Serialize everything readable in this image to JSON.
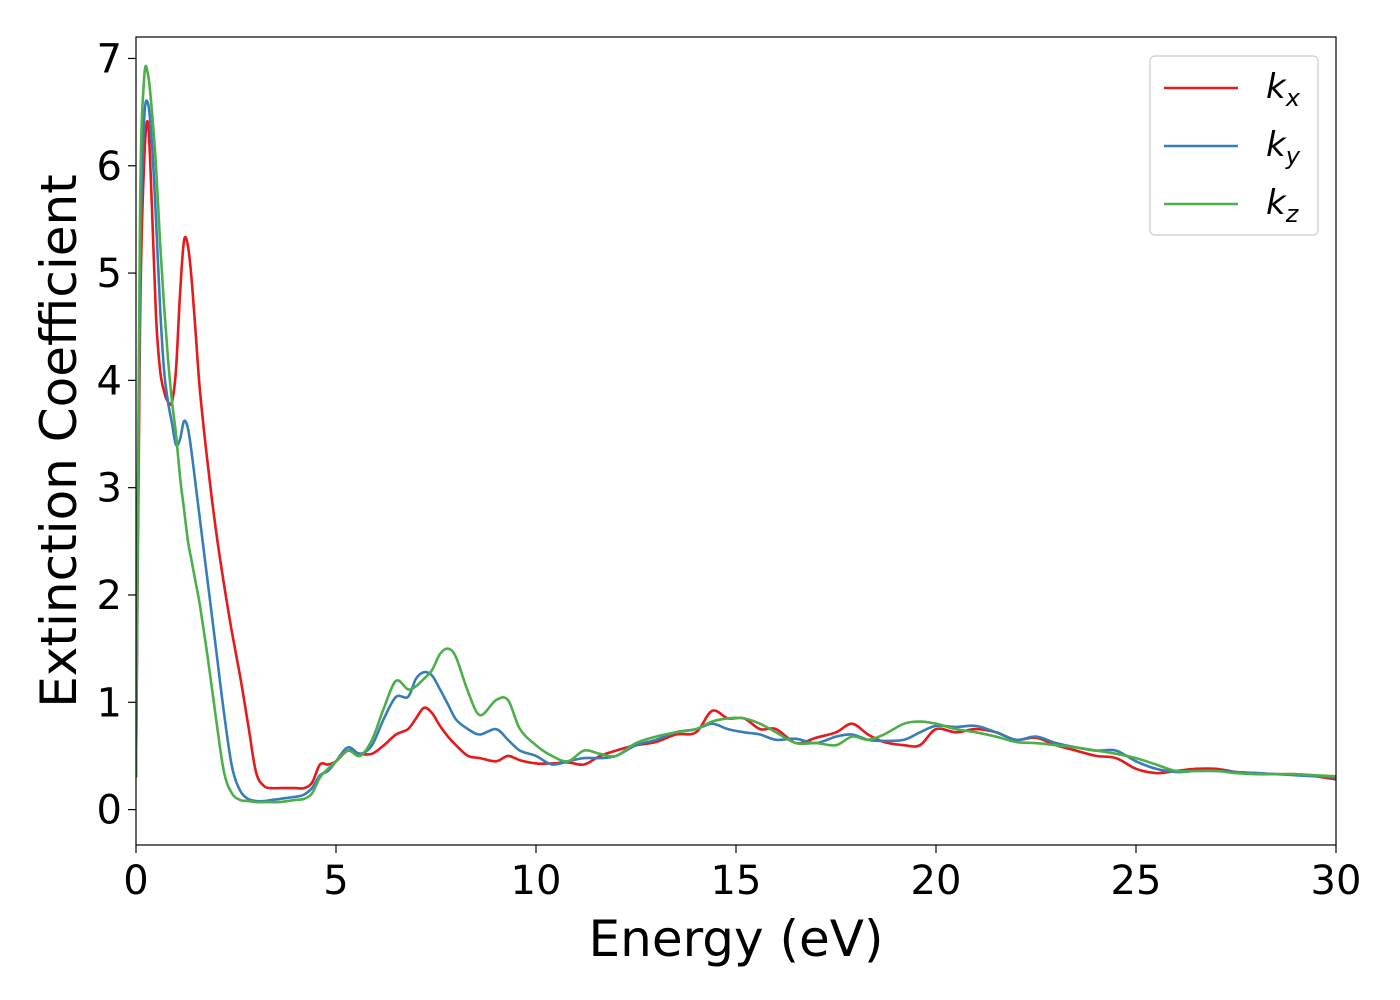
{
  "chart_data": {
    "type": "line",
    "title": "",
    "xlabel": "Energy (eV)",
    "ylabel": "Extinction Coefficient",
    "xlim": [
      0,
      30
    ],
    "ylim": [
      -0.33,
      7.2
    ],
    "xticks": [
      0,
      5,
      10,
      15,
      20,
      25,
      30
    ],
    "yticks": [
      0,
      1,
      2,
      3,
      4,
      5,
      6,
      7
    ],
    "grid": false,
    "legend_position": "top-right",
    "series": [
      {
        "name": "k",
        "subscript": "x",
        "color": "#e41a1c",
        "x": [
          0,
          0.1,
          0.2,
          0.3,
          0.4,
          0.5,
          0.6,
          0.7,
          0.8,
          0.9,
          1.0,
          1.1,
          1.2,
          1.3,
          1.4,
          1.5,
          1.6,
          1.8,
          2.0,
          2.2,
          2.4,
          2.6,
          2.8,
          3.0,
          3.2,
          3.4,
          3.6,
          3.8,
          4.0,
          4.2,
          4.4,
          4.6,
          4.8,
          5.0,
          5.3,
          5.6,
          5.9,
          6.2,
          6.5,
          6.8,
          7.0,
          7.2,
          7.4,
          7.6,
          7.8,
          8.0,
          8.3,
          8.6,
          9.0,
          9.3,
          9.6,
          10.0,
          10.4,
          10.8,
          11.2,
          11.6,
          12.0,
          12.5,
          13.0,
          13.5,
          14.0,
          14.4,
          14.8,
          15.2,
          15.6,
          16.0,
          16.5,
          17.0,
          17.5,
          17.9,
          18.3,
          18.7,
          19.2,
          19.6,
          20.0,
          20.5,
          21.0,
          21.5,
          22.0,
          22.5,
          23.0,
          23.5,
          24.0,
          24.5,
          25.0,
          25.5,
          26.0,
          26.5,
          27.0,
          27.5,
          28.0,
          28.5,
          29.0,
          29.5,
          30.0
        ],
        "y": [
          0.3,
          4.5,
          6.0,
          6.4,
          5.6,
          4.6,
          4.1,
          3.9,
          3.8,
          3.8,
          4.1,
          4.8,
          5.3,
          5.25,
          4.9,
          4.4,
          3.9,
          3.2,
          2.6,
          2.1,
          1.65,
          1.25,
          0.8,
          0.35,
          0.22,
          0.2,
          0.2,
          0.2,
          0.2,
          0.2,
          0.25,
          0.42,
          0.42,
          0.45,
          0.55,
          0.52,
          0.52,
          0.6,
          0.7,
          0.75,
          0.85,
          0.95,
          0.9,
          0.78,
          0.68,
          0.6,
          0.5,
          0.48,
          0.45,
          0.5,
          0.46,
          0.43,
          0.43,
          0.44,
          0.42,
          0.5,
          0.55,
          0.6,
          0.63,
          0.7,
          0.72,
          0.92,
          0.85,
          0.85,
          0.75,
          0.75,
          0.62,
          0.67,
          0.72,
          0.8,
          0.7,
          0.63,
          0.6,
          0.6,
          0.75,
          0.72,
          0.75,
          0.72,
          0.65,
          0.67,
          0.6,
          0.55,
          0.5,
          0.48,
          0.38,
          0.34,
          0.36,
          0.38,
          0.38,
          0.35,
          0.34,
          0.33,
          0.33,
          0.31,
          0.28
        ]
      },
      {
        "name": "k",
        "subscript": "y",
        "color": "#377eb8",
        "x": [
          0,
          0.1,
          0.2,
          0.3,
          0.4,
          0.5,
          0.6,
          0.7,
          0.8,
          0.9,
          1.0,
          1.1,
          1.2,
          1.3,
          1.4,
          1.5,
          1.6,
          1.8,
          2.0,
          2.2,
          2.4,
          2.6,
          2.8,
          3.0,
          3.2,
          3.4,
          3.6,
          3.8,
          4.0,
          4.2,
          4.4,
          4.6,
          4.8,
          5.0,
          5.3,
          5.6,
          5.9,
          6.2,
          6.5,
          6.8,
          7.0,
          7.2,
          7.4,
          7.6,
          7.8,
          8.0,
          8.3,
          8.6,
          9.0,
          9.3,
          9.6,
          10.0,
          10.4,
          10.8,
          11.2,
          11.6,
          12.0,
          12.5,
          13.0,
          13.5,
          14.0,
          14.4,
          14.8,
          15.2,
          15.6,
          16.0,
          16.5,
          17.0,
          17.5,
          17.9,
          18.3,
          18.7,
          19.2,
          19.6,
          20.0,
          20.5,
          21.0,
          21.5,
          22.0,
          22.5,
          23.0,
          23.5,
          24.0,
          24.5,
          25.0,
          25.5,
          26.0,
          26.5,
          27.0,
          27.5,
          28.0,
          28.5,
          29.0,
          29.5,
          30.0
        ],
        "y": [
          0.3,
          5.0,
          6.4,
          6.58,
          6.2,
          5.5,
          4.7,
          4.1,
          3.8,
          3.6,
          3.4,
          3.45,
          3.62,
          3.55,
          3.3,
          3.0,
          2.7,
          2.1,
          1.5,
          0.9,
          0.4,
          0.18,
          0.1,
          0.08,
          0.08,
          0.09,
          0.1,
          0.11,
          0.12,
          0.14,
          0.2,
          0.32,
          0.36,
          0.45,
          0.58,
          0.52,
          0.6,
          0.85,
          1.05,
          1.05,
          1.22,
          1.28,
          1.25,
          1.12,
          0.98,
          0.84,
          0.75,
          0.7,
          0.75,
          0.65,
          0.55,
          0.5,
          0.42,
          0.45,
          0.48,
          0.48,
          0.5,
          0.6,
          0.65,
          0.72,
          0.75,
          0.8,
          0.75,
          0.72,
          0.7,
          0.65,
          0.66,
          0.62,
          0.68,
          0.7,
          0.65,
          0.64,
          0.65,
          0.72,
          0.78,
          0.77,
          0.78,
          0.72,
          0.65,
          0.68,
          0.62,
          0.58,
          0.55,
          0.55,
          0.45,
          0.38,
          0.35,
          0.36,
          0.36,
          0.35,
          0.34,
          0.33,
          0.32,
          0.31,
          0.3
        ]
      },
      {
        "name": "k",
        "subscript": "z",
        "color": "#4daf4a",
        "x": [
          0,
          0.1,
          0.2,
          0.3,
          0.4,
          0.5,
          0.6,
          0.7,
          0.8,
          0.9,
          1.0,
          1.1,
          1.2,
          1.3,
          1.4,
          1.5,
          1.6,
          1.8,
          2.0,
          2.2,
          2.4,
          2.6,
          2.8,
          3.0,
          3.2,
          3.4,
          3.6,
          3.8,
          4.0,
          4.2,
          4.4,
          4.6,
          4.8,
          5.0,
          5.3,
          5.6,
          5.9,
          6.2,
          6.5,
          6.8,
          7.0,
          7.2,
          7.4,
          7.6,
          7.8,
          8.0,
          8.3,
          8.6,
          9.0,
          9.3,
          9.6,
          10.0,
          10.4,
          10.8,
          11.2,
          11.6,
          12.0,
          12.5,
          13.0,
          13.5,
          14.0,
          14.4,
          14.8,
          15.2,
          15.6,
          16.0,
          16.5,
          17.0,
          17.5,
          17.9,
          18.3,
          18.7,
          19.2,
          19.6,
          20.0,
          20.5,
          21.0,
          21.5,
          22.0,
          22.5,
          23.0,
          23.5,
          24.0,
          24.5,
          25.0,
          25.5,
          26.0,
          26.5,
          27.0,
          27.5,
          28.0,
          28.5,
          29.0,
          29.5,
          30.0
        ],
        "y": [
          0.3,
          5.5,
          6.8,
          6.85,
          6.5,
          6.0,
          5.3,
          4.7,
          4.2,
          3.8,
          3.5,
          3.1,
          2.8,
          2.5,
          2.3,
          2.1,
          1.9,
          1.4,
          0.85,
          0.35,
          0.15,
          0.09,
          0.08,
          0.07,
          0.07,
          0.07,
          0.07,
          0.08,
          0.09,
          0.1,
          0.15,
          0.3,
          0.38,
          0.45,
          0.55,
          0.5,
          0.65,
          0.95,
          1.2,
          1.12,
          1.15,
          1.22,
          1.3,
          1.45,
          1.5,
          1.42,
          1.1,
          0.88,
          1.02,
          1.02,
          0.75,
          0.6,
          0.5,
          0.45,
          0.55,
          0.52,
          0.5,
          0.62,
          0.68,
          0.72,
          0.75,
          0.82,
          0.85,
          0.85,
          0.8,
          0.72,
          0.62,
          0.62,
          0.6,
          0.68,
          0.65,
          0.7,
          0.8,
          0.82,
          0.8,
          0.75,
          0.72,
          0.68,
          0.63,
          0.62,
          0.6,
          0.58,
          0.55,
          0.52,
          0.48,
          0.42,
          0.36,
          0.36,
          0.36,
          0.34,
          0.33,
          0.33,
          0.33,
          0.32,
          0.31
        ]
      }
    ]
  }
}
